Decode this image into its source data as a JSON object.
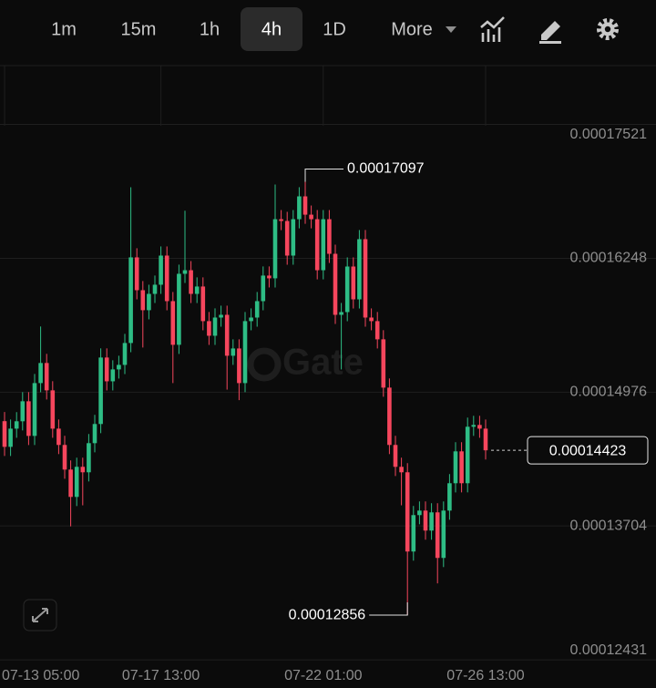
{
  "toolbar": {
    "intervals": [
      "1m",
      "15m",
      "1h",
      "4h",
      "1D"
    ],
    "selected_index": 3,
    "more": "More"
  },
  "chart_data": {
    "type": "candlestick",
    "watermark": "Gate",
    "up_color": "#2ebd85",
    "down_color": "#f6465d",
    "categories": [
      "07-13 05:00",
      null,
      null,
      null,
      null,
      null,
      null,
      null,
      null,
      null,
      null,
      null,
      null,
      null,
      null,
      null,
      null,
      null,
      null,
      null,
      null,
      null,
      null,
      null,
      null,
      null,
      "07-17 13:00",
      null,
      null,
      null,
      null,
      null,
      null,
      null,
      null,
      null,
      null,
      null,
      null,
      null,
      null,
      null,
      null,
      null,
      null,
      null,
      null,
      null,
      null,
      null,
      null,
      null,
      null,
      "07-22 01:00",
      null,
      null,
      null,
      null,
      null,
      null,
      null,
      null,
      null,
      null,
      null,
      null,
      null,
      null,
      null,
      null,
      null,
      null,
      null,
      null,
      null,
      null,
      null,
      null,
      null,
      null,
      "07-26 13:00"
    ],
    "open": [
      0.000147,
      0.00014456,
      0.00014629,
      0.00014699,
      0.00014889,
      0.0001456,
      0.00015062,
      0.00015253,
      0.00014993,
      0.00014629,
      0.00014474,
      0.0001424,
      0.0001398,
      0.00014266,
      0.00014214,
      0.00014491,
      0.00014673,
      0.00015305,
      0.00015079,
      0.00015192,
      0.00015235,
      0.00015443,
      0.00016257,
      0.00015945,
      0.00015755,
      0.0001591,
      0.00015997,
      0.00016274,
      0.00015841,
      0.00015426,
      0.00016101,
      0.00016135,
      0.0001591,
      0.0001598,
      0.00015651,
      0.00015512,
      0.00015685,
      0.00015711,
      0.00015322,
      0.00015391,
      0.00015062,
      0.00015651,
      0.00015685,
      0.00015841,
      0.00016084,
      0.00016058,
      0.0001662,
      0.00016603,
      0.00016274,
      0.0001662,
      0.00016837,
      0.00016663,
      0.0001662,
      0.00016135,
      0.0001662,
      0.00016291,
      0.00015711,
      0.00015737,
      0.0001617,
      0.00015858,
      0.0001643,
      0.00015685,
      0.00015651,
      0.00015478,
      0.00015019,
      0.00014474,
      0.00014266,
      0.00014214,
      0.00013461,
      0.00013807,
      0.0001385,
      0.0001366,
      0.00013833,
      0.000134,
      0.0001385,
      0.0001411,
      0.00014413,
      0.0001411,
      0.00014647,
      0.00014664,
      0.00014629
    ],
    "high": [
      0.00014787,
      0.00014716,
      0.00014786,
      0.00014976,
      0.00014976,
      0.00015149,
      0.000156,
      0.0001534,
      0.0001508,
      0.00014716,
      0.00014561,
      0.00014327,
      0.00014353,
      0.00014353,
      0.00014578,
      0.0001476,
      0.00015392,
      0.00015392,
      0.00015279,
      0.00015322,
      0.0001553,
      0.00016923,
      0.00016344,
      0.00016032,
      0.00015997,
      0.00016084,
      0.00016361,
      0.00016361,
      0.00015928,
      0.00016188,
      0.000167,
      0.00016222,
      0.00016067,
      0.00016067,
      0.00015738,
      0.00015772,
      0.00015798,
      0.00015798,
      0.00015478,
      0.00015478,
      0.00015738,
      0.00015772,
      0.00015928,
      0.00016171,
      0.00016171,
      0.0001695,
      0.00016707,
      0.0001669,
      0.00016707,
      0.00016924,
      0.00017097,
      0.0001675,
      0.00016707,
      0.00016707,
      0.00016707,
      0.00016378,
      0.00015824,
      0.00016257,
      0.00016257,
      0.00016517,
      0.00016517,
      0.00015772,
      0.00015738,
      0.00015565,
      0.00015106,
      0.00014561,
      0.00014353,
      0.00014301,
      0.00013894,
      0.00013937,
      0.00013937,
      0.0001392,
      0.0001392,
      0.00013937,
      0.00014197,
      0.000145,
      0.000145,
      0.00014734,
      0.00014751,
      0.00014751,
      0.00014716
    ],
    "low": [
      0.00014369,
      0.00014369,
      0.00014542,
      0.00014612,
      0.00014473,
      0.00014473,
      0.00014975,
      0.00014906,
      0.00014542,
      0.00014387,
      0.00014153,
      0.000137,
      0.00013893,
      0.000139,
      0.00014127,
      0.00014404,
      0.00014586,
      0.00014992,
      0.00014992,
      0.00015105,
      0.00015148,
      0.00015356,
      0.00015858,
      0.000154,
      0.00015668,
      0.00015823,
      0.0001591,
      0.00015754,
      0.00015062,
      0.00015339,
      0.00016014,
      0.00015823,
      0.00015823,
      0.00015564,
      0.00015425,
      0.00015425,
      0.00015598,
      0.00015,
      0.00015235,
      0.000149,
      0.00014975,
      0.00015564,
      0.00015598,
      0.00015754,
      0.00015971,
      0.00015971,
      0.00016516,
      0.00016187,
      0.00016187,
      0.00016533,
      0.00016576,
      0.00016533,
      0.00016048,
      0.00016048,
      0.00016204,
      0.00015624,
      0.00015192,
      0.0001565,
      0.00015771,
      0.00015771,
      0.00015598,
      0.00015564,
      0.00015391,
      0.00014932,
      0.00014387,
      0.00014179,
      0.000139,
      0.00012856,
      0.00013374,
      0.0001372,
      0.00013573,
      0.00013573,
      0.00013158,
      0.00013313,
      0.00013763,
      0.00014023,
      0.00014023,
      0.00014023,
      0.0001456,
      0.00014542,
      0.00014336
    ],
    "close": [
      0.00014456,
      0.00014629,
      0.00014699,
      0.00014889,
      0.0001456,
      0.00015062,
      0.00015253,
      0.00014993,
      0.00014629,
      0.00014474,
      0.0001424,
      0.0001398,
      0.00014266,
      0.00014214,
      0.00014491,
      0.00014673,
      0.00015305,
      0.00015079,
      0.00015192,
      0.00015235,
      0.00015443,
      0.00016257,
      0.00015945,
      0.00015755,
      0.0001591,
      0.00015997,
      0.00016274,
      0.00015841,
      0.00015426,
      0.00016101,
      0.00016135,
      0.0001591,
      0.0001598,
      0.00015651,
      0.00015512,
      0.00015685,
      0.00015711,
      0.00015322,
      0.00015391,
      0.00015062,
      0.00015651,
      0.00015685,
      0.00015841,
      0.00016084,
      0.00016058,
      0.0001662,
      0.00016603,
      0.00016274,
      0.0001662,
      0.00016837,
      0.00016663,
      0.0001662,
      0.00016135,
      0.0001662,
      0.00016291,
      0.00015711,
      0.00015737,
      0.0001617,
      0.00015858,
      0.0001643,
      0.00015685,
      0.00015651,
      0.00015478,
      0.00015019,
      0.00014474,
      0.00014266,
      0.00014214,
      0.00013461,
      0.00013807,
      0.0001385,
      0.0001366,
      0.00013833,
      0.000134,
      0.0001385,
      0.0001411,
      0.00014413,
      0.0001411,
      0.00014647,
      0.00014664,
      0.00014629,
      0.00014423
    ],
    "high_label": 0.00017097,
    "low_label": 0.00012856,
    "last_price": 0.00014423,
    "ylim": [
      0.0001238,
      0.0001808
    ],
    "yticks": [
      0.00017521,
      0.00016248,
      0.00014976,
      0.00013704,
      0.00012431
    ],
    "grid": true
  }
}
